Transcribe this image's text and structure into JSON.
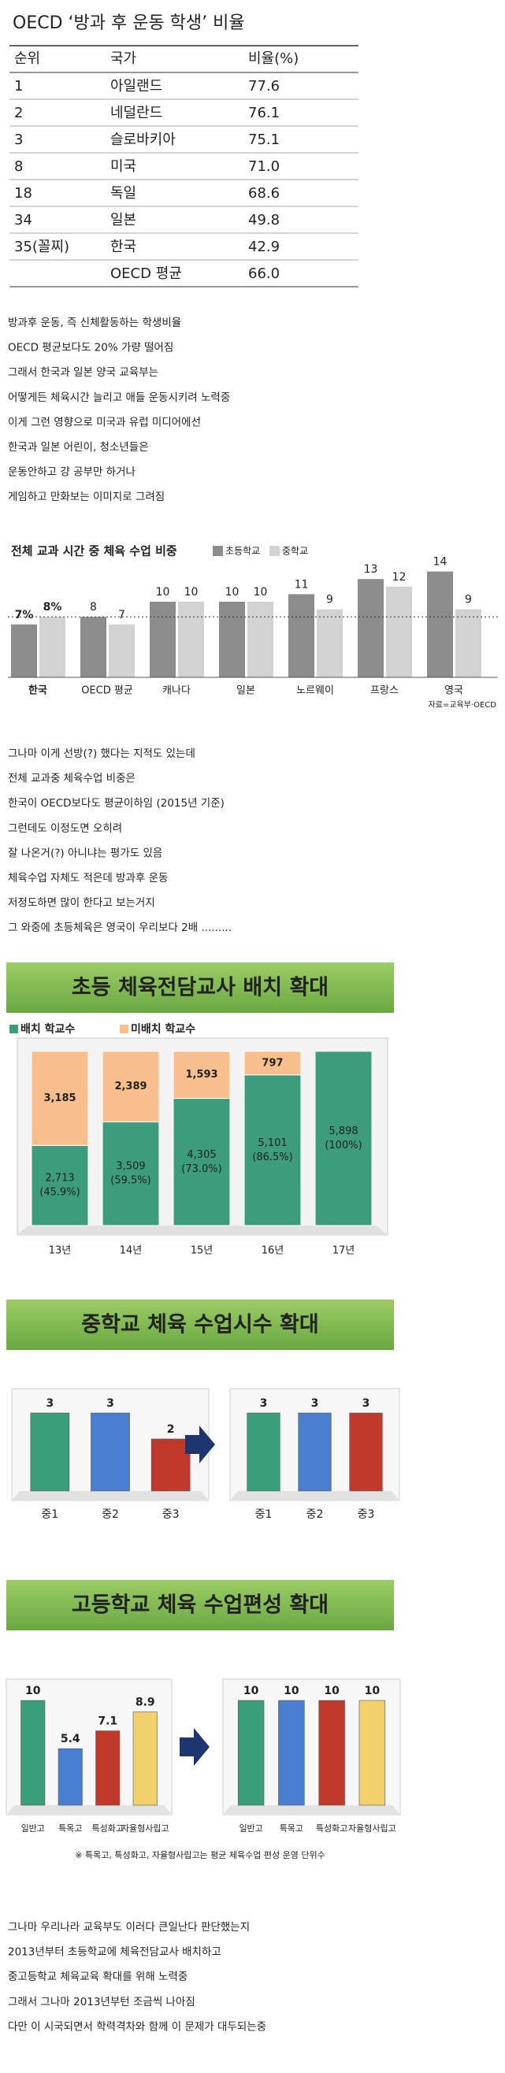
{
  "table": {
    "title": "OECD ‘방과 후 운동 학생’ 비율",
    "header": [
      "순위",
      "국가",
      "비율(%)"
    ],
    "rows": [
      [
        "1",
        "아일랜드",
        "77.6"
      ],
      [
        "2",
        "네덜란드",
        "76.1"
      ],
      [
        "3",
        "슬로바키아",
        "75.1"
      ],
      [
        "8",
        "미국",
        "71.0"
      ],
      [
        "18",
        "독일",
        "68.6"
      ],
      [
        "34",
        "일본",
        "49.8"
      ],
      [
        "35(꼴찌)",
        "한국",
        "42.9"
      ],
      [
        null,
        "OECD 평균",
        "66.0"
      ]
    ]
  },
  "paragraph_1": [
    "방과후 운동, 즉 신체활동하는 학생비율",
    "OECD 평균보다도 20% 가량 떨어짐",
    "그래서 한국과 일본 양국 교육부는",
    "어떻게든 체육시간 늘리고 애들 운동시키려 노력중",
    "이게 그런 영향으로 미국과 유럽 미디어에선",
    "한국과 일본 어린이, 청소년들은",
    "운동안하고 걍 공부만 하거나",
    "게임하고 만화보는 이미지로 그려짐"
  ],
  "chart_1": {
    "type": "bar",
    "title": "전체 교과 시간 중 체육 수업 비중",
    "source": "자료=교육부·OECD",
    "categories": [
      "한국",
      "OECD 평균",
      "캐나다",
      "일본",
      "노르웨이",
      "프랑스",
      "영국"
    ],
    "series": [
      {
        "name": "초등학교",
        "color": "#8c8c8c",
        "values": [
          7,
          8,
          10,
          10,
          11,
          13,
          14
        ],
        "value_labels": [
          "7%",
          "8",
          "10",
          "10",
          "11",
          "13",
          "14"
        ]
      },
      {
        "name": "중학교",
        "color": "#d2d2d2",
        "values": [
          8,
          7,
          10,
          10,
          9,
          12,
          9
        ],
        "value_labels": [
          "8%",
          "7",
          "10",
          "10",
          "9",
          "12",
          "9"
        ]
      }
    ]
  },
  "paragraph_2": [
    "그나마 이게 선방(?) 했다는 지적도 있는데",
    "전체 교과중 체육수업 비중은",
    "한국이 OECD보다도 평균이하임 (2015년 기준)",
    "그런데도 이정도면 오히려",
    "잘 나온거(?) 아니냐는 평가도 있음",
    "체육수업 자체도 적은데 방과후 운동",
    "저정도하면 많이 한다고 보는거지",
    "그 와중에 초등체육은 영국이 우리보다 2배 ........."
  ],
  "chart_2": {
    "type": "stacked-bar",
    "title": "초등 체육전담교사 배치 확대",
    "categories": [
      "13년",
      "14년",
      "15년",
      "16년",
      "17년"
    ],
    "series": [
      {
        "name": "배치 학교수",
        "color": "#3d9c7c",
        "values": [
          2713,
          3509,
          4305,
          5101,
          5898
        ],
        "value_labels": [
          "2,713",
          "3,509",
          "4,305",
          "5,101",
          "5,898"
        ],
        "shares": [
          "(45.9%)",
          "(59.5%)",
          "(73.0%)",
          "(86.5%)",
          "(100%)"
        ]
      },
      {
        "name": "미배치 학교수",
        "color": "#f8bf8c",
        "values": [
          3185,
          2389,
          1593,
          797,
          null
        ],
        "value_labels": [
          "3,185",
          "2,389",
          "1,593",
          "797",
          null
        ]
      }
    ]
  },
  "chart_3": {
    "type": "bar-compare",
    "title": "중학교 체육 수업시수 확대",
    "colors": [
      "#3a9e78",
      "#4a7fd0",
      "#c0392b"
    ],
    "panels": [
      {
        "categories": [
          "중1",
          "중2",
          "중3"
        ],
        "values": [
          3,
          3,
          2
        ]
      },
      {
        "categories": [
          "중1",
          "중2",
          "중3"
        ],
        "values": [
          3,
          3,
          3
        ]
      }
    ]
  },
  "chart_4": {
    "type": "bar-compare",
    "title": "고등학교 체육 수업편성 확대",
    "colors": [
      "#3a9e78",
      "#4a7fd0",
      "#c0392b",
      "#f2d06b"
    ],
    "panels": [
      {
        "categories": [
          "일반고",
          "특목고",
          "특성화고",
          "자율형사립고"
        ],
        "values": [
          10,
          5.4,
          7.1,
          8.9
        ]
      },
      {
        "categories": [
          "일반고",
          "특목고",
          "특성화고",
          "자율형사립고"
        ],
        "values": [
          10,
          10,
          10,
          10
        ]
      }
    ],
    "note": "※ 특목고, 특성화고, 자율형사립고는 평균 체육수업 편성 운영 단위수"
  },
  "paragraph_3": [
    "그나마 우리나라 교육부도 이러다 큰일난다 판단했는지",
    "2013년부터 초등학교에 체육전담교사 배치하고",
    "중고등학교 체육교육 확대를 위해 노력중",
    "그래서 그나마 2013년부턴 조금씩 나아짐",
    "다만 이 시국되면서 학력격차와 함께 이 문제가 대두되는중"
  ]
}
